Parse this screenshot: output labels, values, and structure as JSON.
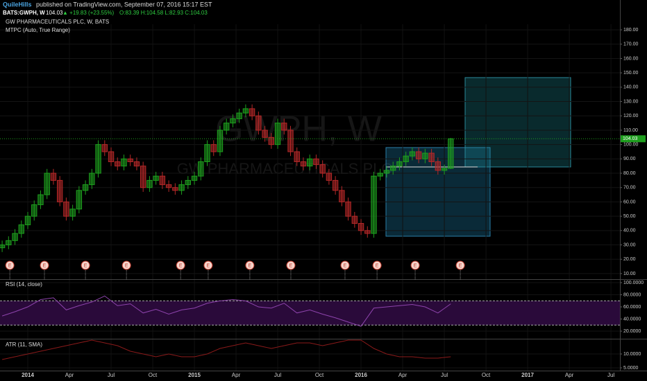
{
  "header": {
    "author": "QuileHills",
    "published": "published on TradingView.com, September 07, 2016 15:17 EST",
    "symbol": "BATS:GWPH, W",
    "price": "104.03",
    "change": "▲ +19.83 (+23.55%)",
    "ohlc": "O:83.39 H:104.58 L:82.93 C:104.03"
  },
  "chart_data": [
    {
      "type": "candlestick",
      "title": "GW PHARMACEUTICALS PLC, W, BATS",
      "indicator": "MTPC (Auto, True Range)",
      "watermark": "GWPH, W",
      "watermark_sub": "GW PHARMACEUTICALS PLC",
      "up_color": "#1e9e1e",
      "down_color": "#b52828",
      "xlim": [
        -8.67,
        184.8
      ],
      "xticks": [
        {
          "value": 0,
          "label": "2014"
        },
        {
          "value": 13,
          "label": "Apr"
        },
        {
          "value": 26,
          "label": "Jul"
        },
        {
          "value": 39,
          "label": "Oct"
        },
        {
          "value": 52,
          "label": "2015"
        },
        {
          "value": 65,
          "label": "Apr"
        },
        {
          "value": 78,
          "label": "Jul"
        },
        {
          "value": 91,
          "label": "Oct"
        },
        {
          "value": 104,
          "label": "2016"
        },
        {
          "value": 117,
          "label": "Apr"
        },
        {
          "value": 130,
          "label": "Jul"
        },
        {
          "value": 143,
          "label": "Oct"
        },
        {
          "value": 156,
          "label": "2017"
        },
        {
          "value": 169,
          "label": "Apr"
        },
        {
          "value": 182,
          "label": "Jul"
        }
      ],
      "ylim": [
        6.1,
        183.9
      ],
      "yticks": [
        {
          "value": 10,
          "label": "10.00"
        },
        {
          "value": 20,
          "label": "20.00"
        },
        {
          "value": 30,
          "label": "30.00"
        },
        {
          "value": 40,
          "label": "40.00"
        },
        {
          "value": 50,
          "label": "50.00"
        },
        {
          "value": 60,
          "label": "60.00"
        },
        {
          "value": 70,
          "label": "70.00"
        },
        {
          "value": 80,
          "label": "80.00"
        },
        {
          "value": 90,
          "label": "90.00"
        },
        {
          "value": 100,
          "label": "100.00"
        },
        {
          "value": 110,
          "label": "110.00"
        },
        {
          "value": 120,
          "label": "120.00"
        },
        {
          "value": 130,
          "label": "130.00"
        },
        {
          "value": 140,
          "label": "140.00"
        },
        {
          "value": 150,
          "label": "150.00"
        },
        {
          "value": 160,
          "label": "160.00"
        },
        {
          "value": 170,
          "label": "170.00"
        },
        {
          "value": 180,
          "label": "180.00"
        }
      ],
      "x": [
        -8,
        -6,
        -4,
        -2,
        0,
        2,
        4,
        6,
        8,
        10,
        12,
        14,
        16,
        18,
        20,
        22,
        24,
        26,
        28,
        30,
        32,
        34,
        36,
        38,
        40,
        42,
        44,
        46,
        48,
        50,
        52,
        54,
        56,
        58,
        60,
        62,
        64,
        66,
        68,
        70,
        72,
        74,
        76,
        78,
        80,
        82,
        84,
        86,
        88,
        90,
        92,
        94,
        96,
        98,
        100,
        102,
        104,
        106,
        108,
        110,
        112,
        114,
        116,
        118,
        120,
        122,
        124,
        126,
        128,
        130,
        132
      ],
      "open": [
        28,
        30,
        33,
        38,
        44,
        50,
        58,
        65,
        80,
        75,
        60,
        50,
        55,
        68,
        72,
        80,
        100,
        95,
        88,
        85,
        90,
        88,
        85,
        70,
        75,
        78,
        72,
        70,
        68,
        72,
        75,
        78,
        88,
        100,
        95,
        110,
        115,
        118,
        122,
        125,
        120,
        110,
        105,
        100,
        115,
        110,
        95,
        88,
        85,
        90,
        86,
        80,
        75,
        68,
        60,
        50,
        45,
        40,
        38,
        78,
        80,
        82,
        85,
        88,
        92,
        95,
        90,
        94,
        88,
        82,
        83.39
      ],
      "high": [
        33,
        36,
        41,
        47,
        53,
        61,
        68,
        83,
        83,
        78,
        63,
        58,
        71,
        75,
        83,
        103,
        103,
        98,
        91,
        93,
        93,
        91,
        88,
        78,
        81,
        81,
        75,
        73,
        75,
        78,
        81,
        91,
        103,
        103,
        113,
        118,
        121,
        125,
        128,
        128,
        123,
        113,
        108,
        118,
        118,
        113,
        98,
        91,
        93,
        93,
        89,
        83,
        78,
        71,
        63,
        53,
        48,
        43,
        81,
        83,
        85,
        88,
        91,
        95,
        98,
        98,
        97,
        97,
        91,
        86,
        104.58
      ],
      "low": [
        25,
        27,
        30,
        35,
        41,
        47,
        55,
        62,
        72,
        57,
        47,
        47,
        52,
        65,
        69,
        77,
        92,
        85,
        82,
        82,
        85,
        82,
        67,
        67,
        72,
        69,
        67,
        65,
        65,
        69,
        72,
        75,
        85,
        92,
        92,
        107,
        112,
        115,
        119,
        117,
        107,
        102,
        97,
        97,
        107,
        92,
        85,
        82,
        82,
        83,
        77,
        72,
        65,
        57,
        47,
        42,
        37,
        35,
        35,
        75,
        77,
        79,
        82,
        85,
        89,
        87,
        87,
        85,
        79,
        79,
        82.93
      ],
      "close": [
        30,
        33,
        38,
        44,
        50,
        58,
        65,
        80,
        75,
        60,
        50,
        55,
        68,
        72,
        80,
        100,
        95,
        88,
        85,
        90,
        88,
        85,
        70,
        75,
        78,
        72,
        70,
        68,
        72,
        75,
        78,
        88,
        100,
        95,
        110,
        115,
        118,
        122,
        125,
        120,
        110,
        105,
        100,
        115,
        110,
        95,
        88,
        85,
        90,
        86,
        80,
        75,
        68,
        60,
        50,
        45,
        40,
        38,
        78,
        80,
        82,
        85,
        88,
        92,
        95,
        90,
        94,
        88,
        82,
        83.39,
        104.03
      ],
      "earnings": {
        "label": "E",
        "x": [
          -5.6,
          5.2,
          18.0,
          30.8,
          47.7,
          56.3,
          69.3,
          82.1,
          99.0,
          109.0,
          120.9,
          135.0
        ]
      }
    },
    {
      "type": "line",
      "title": "RSI (14, close)",
      "color": "#8e44ad",
      "band": [
        30,
        70
      ],
      "band_color": "#2a0a3a",
      "ylim": [
        8.6,
        104.6
      ],
      "yticks": [
        {
          "value": 20,
          "label": "20.0000"
        },
        {
          "value": 40,
          "label": "40.0000"
        },
        {
          "value": 60,
          "label": "60.0000"
        },
        {
          "value": 80,
          "label": "80.0000"
        },
        {
          "value": 100,
          "label": "100.0000"
        }
      ],
      "x": [
        -8,
        -4,
        0,
        4,
        8,
        12,
        16,
        20,
        24,
        28,
        32,
        36,
        40,
        44,
        48,
        52,
        56,
        60,
        64,
        68,
        72,
        76,
        80,
        84,
        88,
        92,
        96,
        100,
        104,
        108,
        112,
        116,
        120,
        124,
        128,
        132
      ],
      "values": [
        45,
        52,
        60,
        72,
        75,
        55,
        62,
        68,
        78,
        62,
        65,
        50,
        56,
        48,
        55,
        58,
        66,
        70,
        72,
        70,
        60,
        58,
        66,
        50,
        55,
        48,
        42,
        35,
        28,
        58,
        60,
        62,
        64,
        60,
        50,
        65
      ]
    },
    {
      "type": "line",
      "title": "ATR (11, SMA)",
      "color": "#8b1a1a",
      "ylim": [
        4,
        15.25
      ],
      "yticks": [
        {
          "value": 5,
          "label": "5.0000"
        },
        {
          "value": 10,
          "label": "10.0000"
        }
      ],
      "x": [
        -8,
        -4,
        0,
        4,
        8,
        12,
        16,
        20,
        24,
        28,
        32,
        36,
        40,
        44,
        48,
        52,
        56,
        60,
        64,
        68,
        72,
        76,
        80,
        84,
        88,
        92,
        96,
        100,
        104,
        108,
        112,
        116,
        120,
        124,
        128,
        132
      ],
      "values": [
        8,
        9,
        10,
        11,
        12,
        13,
        14,
        15,
        14,
        13,
        11,
        10,
        9,
        10,
        9,
        9,
        10,
        12,
        13,
        14,
        13,
        12,
        13,
        14,
        14,
        13,
        14,
        15,
        15,
        12,
        10,
        9,
        9,
        8.5,
        8.5,
        9
      ]
    }
  ]
}
